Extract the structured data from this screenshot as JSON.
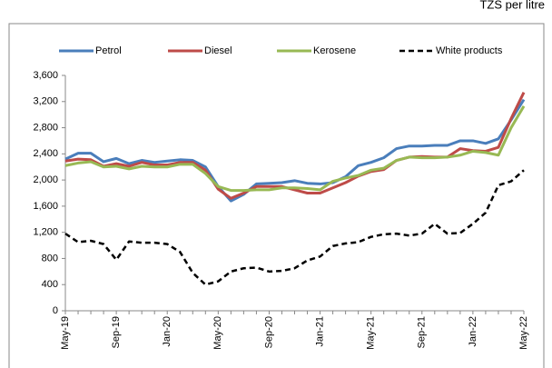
{
  "chart_data": {
    "type": "line",
    "unit_label": "TZS per litre",
    "categories": [
      "May-19",
      null,
      null,
      null,
      "Sep-19",
      null,
      null,
      null,
      "Jan-20",
      null,
      null,
      null,
      "May-20",
      null,
      null,
      null,
      "Sep-20",
      null,
      null,
      null,
      "Jan-21",
      null,
      null,
      null,
      "May-21",
      null,
      null,
      null,
      "Sep-21",
      null,
      null,
      null,
      "Jan-22",
      null,
      null,
      null,
      "May-22"
    ],
    "series": [
      {
        "name": "Petrol",
        "color": "#4a7ebb",
        "dashed": false,
        "values": [
          2320,
          2410,
          2410,
          2280,
          2330,
          2250,
          2300,
          2270,
          2290,
          2310,
          2300,
          2200,
          1900,
          1680,
          1780,
          1940,
          1950,
          1960,
          1990,
          1950,
          1940,
          1960,
          2050,
          2220,
          2270,
          2340,
          2480,
          2520,
          2520,
          2530,
          2530,
          2600,
          2600,
          2560,
          2630,
          2920,
          3230
        ]
      },
      {
        "name": "Diesel",
        "color": "#be4b48",
        "dashed": false,
        "values": [
          2290,
          2320,
          2310,
          2210,
          2250,
          2210,
          2270,
          2230,
          2230,
          2270,
          2270,
          2150,
          1860,
          1720,
          1800,
          1900,
          1900,
          1900,
          1850,
          1800,
          1800,
          1880,
          1960,
          2060,
          2130,
          2160,
          2300,
          2350,
          2360,
          2350,
          2350,
          2480,
          2450,
          2440,
          2500,
          2940,
          3340
        ]
      },
      {
        "name": "Kerosene",
        "color": "#98b954",
        "dashed": false,
        "values": [
          2220,
          2260,
          2280,
          2200,
          2210,
          2170,
          2210,
          2200,
          2200,
          2240,
          2240,
          2100,
          1900,
          1840,
          1840,
          1850,
          1850,
          1880,
          1880,
          1870,
          1850,
          1980,
          2030,
          2070,
          2150,
          2180,
          2300,
          2350,
          2340,
          2340,
          2350,
          2380,
          2440,
          2420,
          2380,
          2800,
          3130
        ]
      },
      {
        "name": "White products",
        "color": "#000000",
        "dashed": true,
        "values": [
          1180,
          1050,
          1070,
          1020,
          780,
          1060,
          1040,
          1040,
          1020,
          900,
          580,
          400,
          450,
          600,
          650,
          660,
          600,
          610,
          650,
          770,
          830,
          990,
          1030,
          1050,
          1130,
          1170,
          1180,
          1150,
          1180,
          1330,
          1180,
          1190,
          1330,
          1500,
          1920,
          1980,
          2150
        ]
      }
    ],
    "ylim": [
      0,
      3600
    ],
    "yticks": [
      0,
      400,
      800,
      {
        "value": 1200,
        "label": "1,200"
      },
      {
        "value": 1600,
        "label": "1,600"
      },
      {
        "value": 2000,
        "label": "2,000"
      },
      {
        "value": 2400,
        "label": "2,400"
      },
      {
        "value": 2800,
        "label": "2,800"
      },
      {
        "value": 3200,
        "label": "3,200"
      },
      {
        "value": 3600,
        "label": "3,600"
      }
    ],
    "grid": false,
    "legend": "top"
  }
}
